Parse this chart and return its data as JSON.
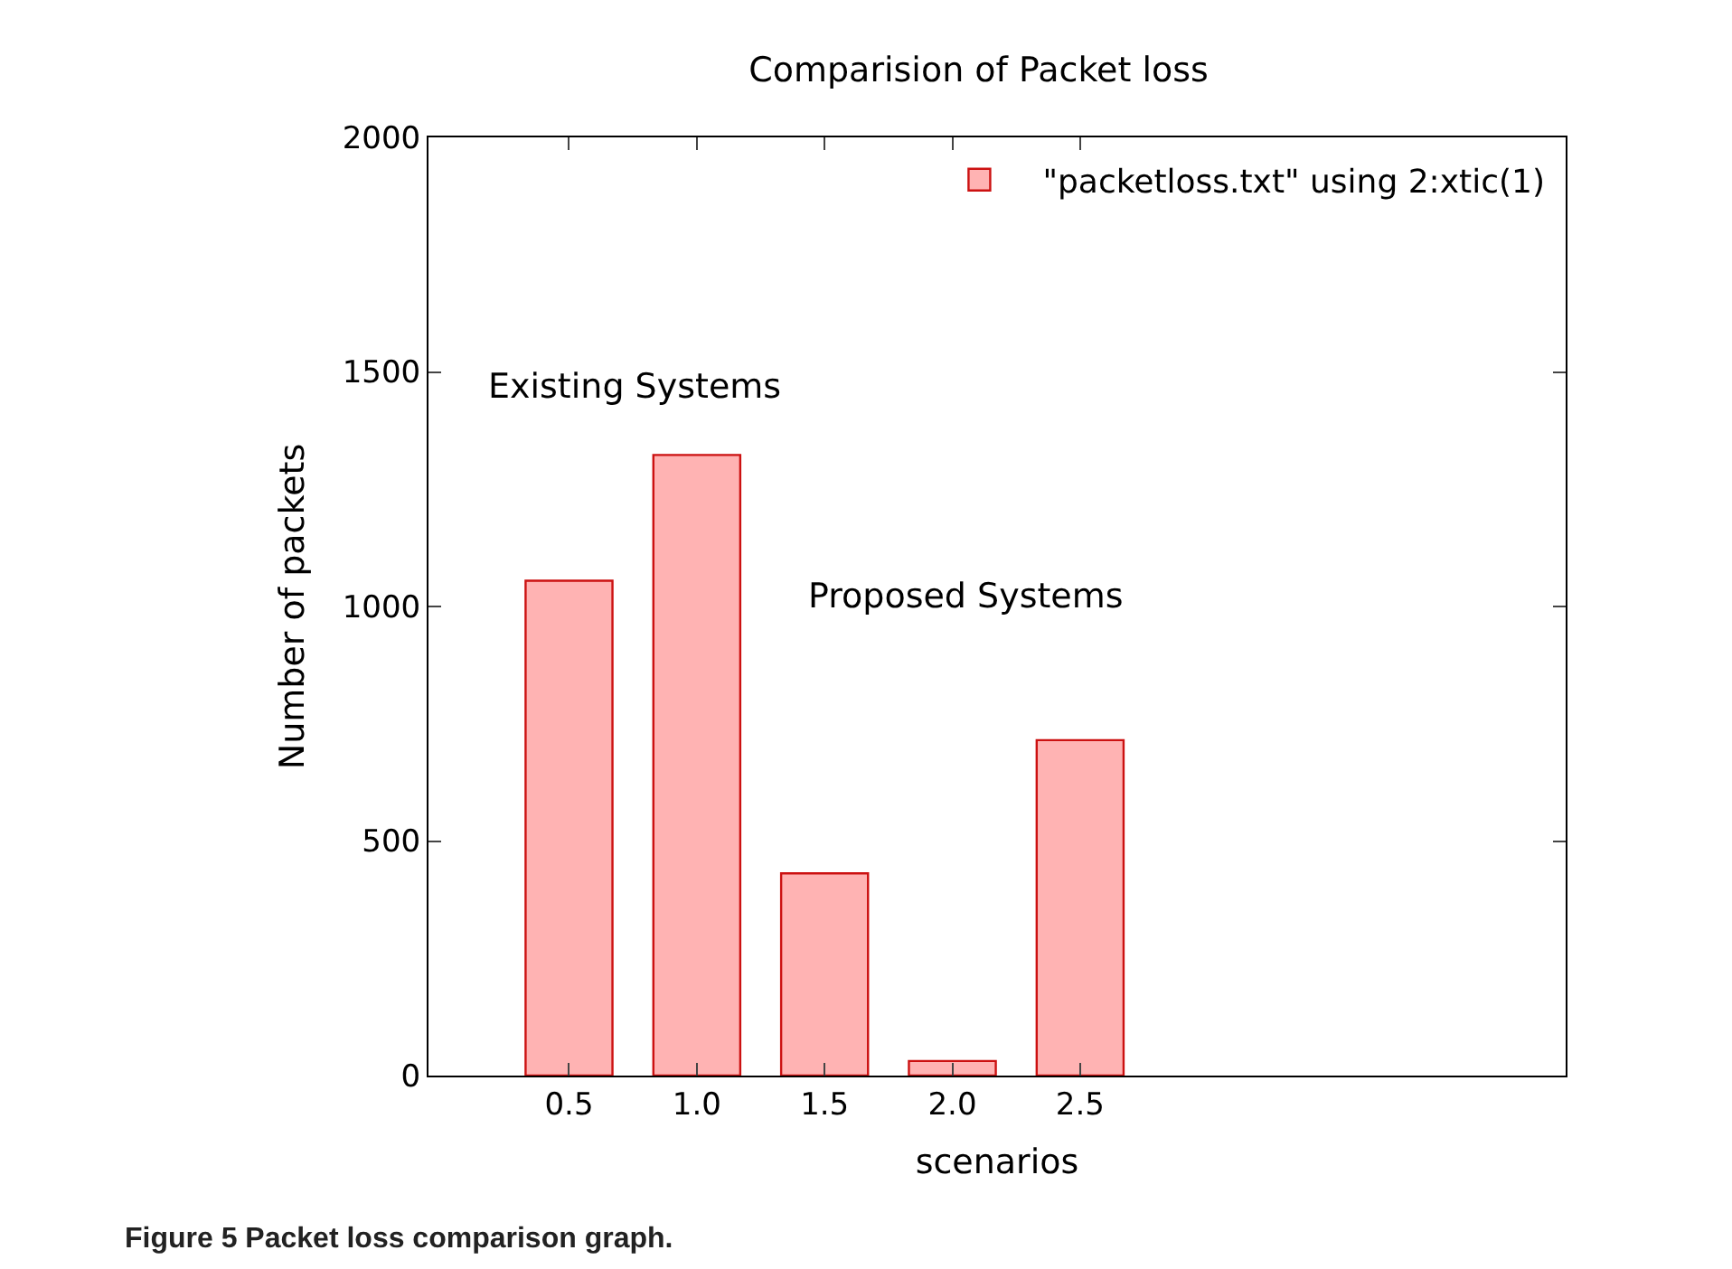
{
  "chart_data": {
    "type": "bar",
    "title": "Comparision of Packet loss",
    "xlabel": "scenarios",
    "ylabel": "Number of packets",
    "categories": [
      "0.5",
      "1.0",
      "1.5",
      "2.0",
      "2.5"
    ],
    "series": [
      {
        "name": "\"packetloss.txt\" using 2:xtic(1)",
        "color": "#ffb3b3",
        "values": [
          1055,
          1323,
          431,
          31,
          715
        ]
      }
    ],
    "ylim": [
      0,
      2000
    ],
    "yticks": [
      0,
      500,
      1000,
      1500,
      2000
    ],
    "legend": "top right",
    "annotations": [
      "Existing Systems",
      "Proposed Systems",
      "Figure 5 Packet loss comparison graph."
    ]
  }
}
